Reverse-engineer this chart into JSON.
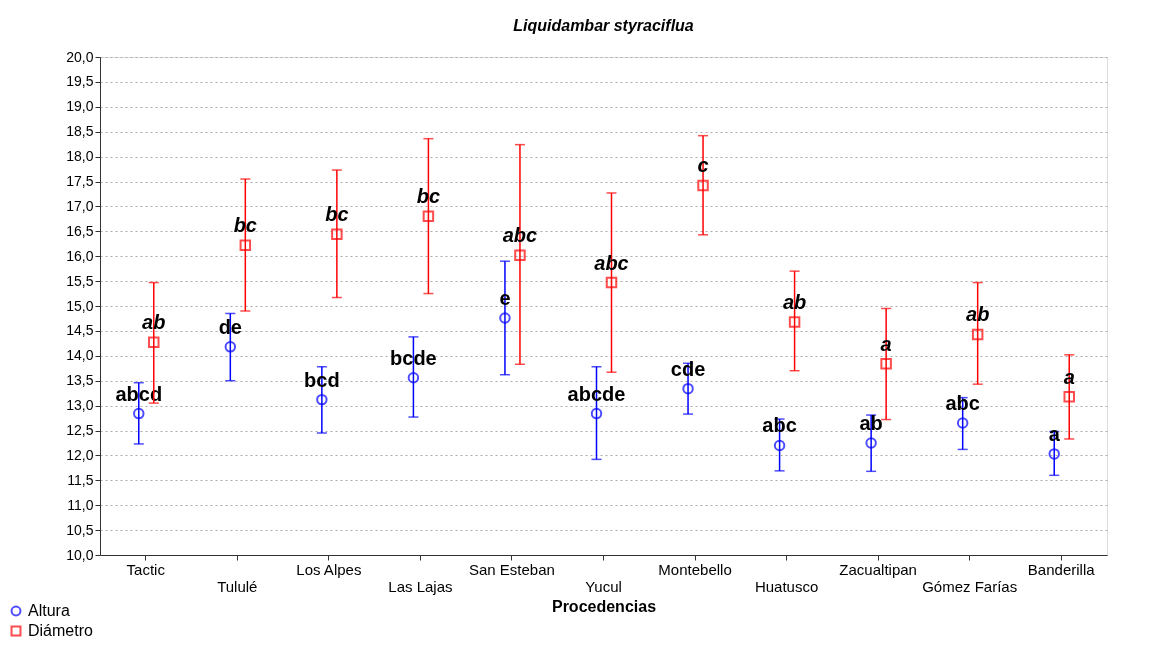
{
  "chart_data": {
    "type": "scatter",
    "title": "Liquidambar styraciflua",
    "xlabel": "Procedencias",
    "categories": [
      "Tactic",
      "Tululé",
      "Los Alpes",
      "Las Lajas",
      "San Esteban",
      "Yucul",
      "Montebello",
      "Huatusco",
      "Zacualtipan",
      "Gómez Farías",
      "Banderilla"
    ],
    "series": [
      {
        "name": "Altura",
        "color": "#0000ff",
        "marker": "circle",
        "values": [
          12.84,
          14.18,
          13.12,
          13.56,
          14.76,
          12.84,
          13.34,
          12.2,
          12.25,
          12.65,
          12.03
        ],
        "errors": [
          [
            12.23,
            13.46
          ],
          [
            13.5,
            14.85
          ],
          [
            12.45,
            13.78
          ],
          [
            12.77,
            14.38
          ],
          [
            13.62,
            15.9
          ],
          [
            11.92,
            13.78
          ],
          [
            12.83,
            13.85
          ],
          [
            11.69,
            12.73
          ],
          [
            11.68,
            12.81
          ],
          [
            12.12,
            13.16
          ],
          [
            11.6,
            12.48
          ]
        ],
        "value_labels": [
          "abcd",
          "de",
          "bcd",
          "bcde",
          "e",
          "abcde",
          "cde",
          "abc",
          "ab",
          "abc",
          "a"
        ]
      },
      {
        "name": "Diámetro",
        "color": "#ff0000",
        "marker": "square",
        "values": [
          14.27,
          16.22,
          16.44,
          16.8,
          16.02,
          15.47,
          17.42,
          14.68,
          13.84,
          14.43,
          13.18
        ],
        "errors": [
          [
            13.05,
            15.47
          ],
          [
            14.9,
            17.55
          ],
          [
            15.17,
            17.73
          ],
          [
            15.25,
            18.36
          ],
          [
            13.83,
            18.24
          ],
          [
            13.67,
            17.27
          ],
          [
            16.43,
            18.42
          ],
          [
            13.7,
            15.7
          ],
          [
            12.72,
            14.95
          ],
          [
            13.43,
            15.47
          ],
          [
            12.33,
            14.02
          ]
        ],
        "value_labels": [
          "ab",
          "bc",
          "bc",
          "bc",
          "abc",
          "abc",
          "c",
          "ab",
          "a",
          "ab",
          "a"
        ]
      }
    ],
    "ylim": [
      10,
      20
    ],
    "yticks": [
      {
        "value": 10,
        "label": "10,0"
      },
      {
        "value": 10.5,
        "label": "10,5"
      },
      {
        "value": 11,
        "label": "11,0"
      },
      {
        "value": 11.5,
        "label": "11,5"
      },
      {
        "value": 12,
        "label": "12,0"
      },
      {
        "value": 12.5,
        "label": "12,5"
      },
      {
        "value": 13,
        "label": "13,0"
      },
      {
        "value": 13.5,
        "label": "13,5"
      },
      {
        "value": 14,
        "label": "14,0"
      },
      {
        "value": 14.5,
        "label": "14,5"
      },
      {
        "value": 15,
        "label": "15,0"
      },
      {
        "value": 15.5,
        "label": "15,5"
      },
      {
        "value": 16,
        "label": "16,0"
      },
      {
        "value": 16.5,
        "label": "16,5"
      },
      {
        "value": 17,
        "label": "17,0"
      },
      {
        "value": 17.5,
        "label": "17,5"
      },
      {
        "value": 18,
        "label": "18,0"
      },
      {
        "value": 18.5,
        "label": "18,5"
      },
      {
        "value": 19,
        "label": "19,0"
      },
      {
        "value": 19.5,
        "label": "19,5"
      },
      {
        "value": 20,
        "label": "20,0"
      }
    ],
    "grid": "y",
    "legend": "bottom left"
  }
}
